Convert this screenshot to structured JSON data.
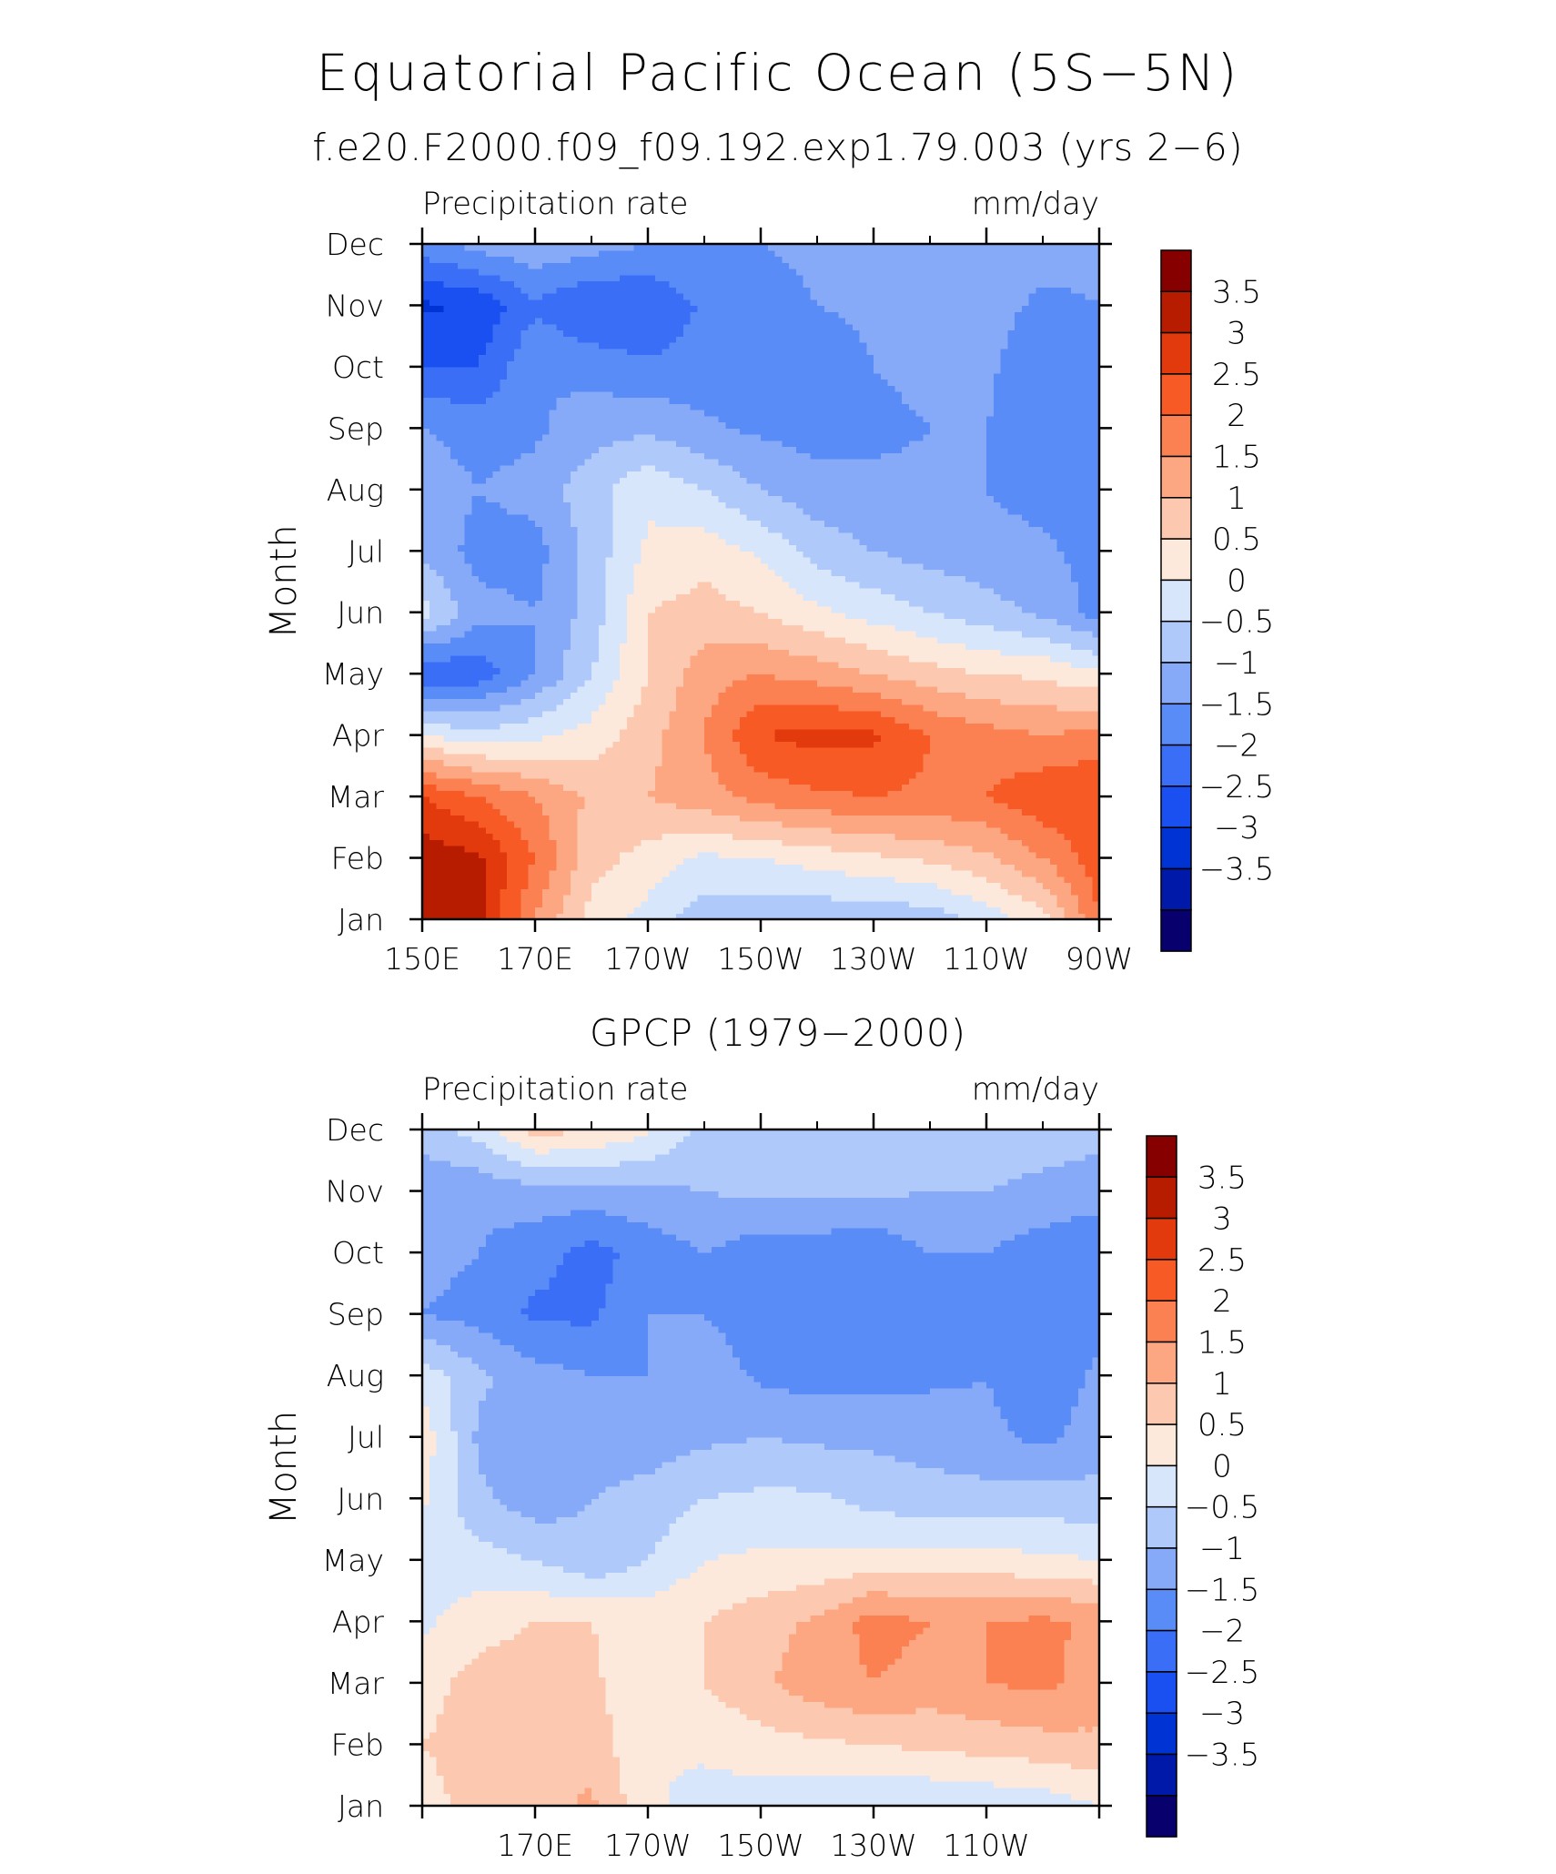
{
  "page": {
    "title": "Equatorial Pacific Ocean (5S−5N)",
    "subtitle": "f.e20.F2000.f09_f09.192.exp1.79.003 (yrs 2−6)"
  },
  "chart_data": [
    {
      "type": "heatmap",
      "title": "",
      "left_label": "Precipitation rate",
      "right_label": "mm/day",
      "ylabel": "Month",
      "xlabel": "",
      "x_ticks": [
        "150E",
        "170E",
        "170W",
        "150W",
        "130W",
        "110W",
        "90W"
      ],
      "x_tick_values": [
        150,
        170,
        190,
        210,
        230,
        250,
        270
      ],
      "xlim": [
        150,
        270
      ],
      "y_ticks": [
        "Jan",
        "Feb",
        "Mar",
        "Apr",
        "May",
        "Jun",
        "Jul",
        "Aug",
        "Sep",
        "Oct",
        "Nov",
        "Dec"
      ],
      "colorbar_labels": [
        "3.5",
        "3",
        "2.5",
        "2",
        "1.5",
        "1",
        "0.5",
        "0",
        "−0.5",
        "−1",
        "−1.5",
        "−2",
        "−2.5",
        "−3",
        "−3.5"
      ],
      "lon": [
        150,
        160,
        170,
        180,
        190,
        200,
        210,
        220,
        230,
        240,
        250,
        260,
        270
      ],
      "values": [
        [
          3.8,
          3.6,
          2.0,
          0.8,
          0.3,
          -0.3,
          -0.4,
          -0.4,
          -0.4,
          -0.3,
          0.2,
          0.8,
          2.5
        ],
        [
          3.8,
          3.6,
          2.5,
          1.2,
          0.8,
          0.4,
          0.5,
          0.7,
          0.9,
          1.1,
          1.4,
          2.0,
          2.8
        ],
        [
          3.0,
          2.5,
          2.0,
          1.4,
          1.5,
          1.8,
          2.2,
          2.4,
          2.5,
          2.4,
          2.5,
          2.9,
          3.0
        ],
        [
          0.5,
          0.2,
          0.4,
          0.7,
          1.3,
          2.0,
          3.0,
          3.2,
          3.1,
          2.5,
          2.2,
          2.0,
          2.2
        ],
        [
          -2.0,
          -1.8,
          -1.0,
          0.0,
          1.0,
          1.8,
          2.0,
          1.8,
          1.5,
          1.2,
          1.0,
          0.9,
          0.6
        ],
        [
          0.2,
          -0.8,
          -1.0,
          -0.3,
          1.0,
          1.2,
          1.0,
          0.6,
          0.3,
          0.0,
          -0.3,
          -0.6,
          -1.2
        ],
        [
          -0.6,
          -1.2,
          -1.2,
          -0.3,
          0.6,
          0.8,
          0.4,
          -0.2,
          -0.5,
          -0.7,
          -0.8,
          -0.9,
          -1.2
        ],
        [
          -0.7,
          -1.0,
          -0.8,
          -0.2,
          0.4,
          0.0,
          -0.5,
          -0.8,
          -0.9,
          -0.9,
          -1.0,
          -1.2,
          -1.2
        ],
        [
          -1.0,
          -1.2,
          -1.1,
          -0.7,
          -0.6,
          -0.9,
          -1.1,
          -1.2,
          -1.1,
          -1.0,
          -1.0,
          -1.3,
          -1.3
        ],
        [
          -2.0,
          -2.0,
          -1.0,
          -1.2,
          -1.4,
          -1.3,
          -1.4,
          -1.3,
          -1.0,
          -0.9,
          -0.9,
          -1.4,
          -1.3
        ],
        [
          -2.6,
          -2.4,
          -1.6,
          -2.0,
          -2.0,
          -1.4,
          -1.2,
          -1.0,
          -0.9,
          -0.8,
          -0.8,
          -1.1,
          -1.0
        ],
        [
          -1.2,
          -0.8,
          -0.6,
          -0.8,
          -1.0,
          -1.0,
          -1.0,
          -0.9,
          -0.8,
          -0.8,
          -0.8,
          -0.8,
          -0.9
        ]
      ]
    },
    {
      "type": "heatmap",
      "title": "GPCP (1979−2000)",
      "left_label": "Precipitation rate",
      "right_label": "mm/day",
      "ylabel": "Month",
      "xlabel": "",
      "x_ticks": [
        "170E",
        "170W",
        "150W",
        "130W",
        "110W"
      ],
      "x_tick_values": [
        170,
        190,
        210,
        230,
        250
      ],
      "xlim": [
        150,
        270
      ],
      "y_ticks": [
        "Jan",
        "Feb",
        "Mar",
        "Apr",
        "May",
        "Jun",
        "Jul",
        "Aug",
        "Sep",
        "Oct",
        "Nov",
        "Dec"
      ],
      "colorbar_labels": [
        "3.5",
        "3",
        "2.5",
        "2",
        "1.5",
        "1",
        "0.5",
        "0",
        "−0.5",
        "−1",
        "−1.5",
        "−2",
        "−2.5",
        "−3",
        "−3.5"
      ],
      "lon": [
        150,
        160,
        170,
        180,
        190,
        200,
        210,
        220,
        230,
        240,
        250,
        260,
        270
      ],
      "values": [
        [
          0.8,
          1.2,
          1.3,
          1.6,
          0.6,
          0.3,
          0.2,
          0.1,
          0.0,
          0.0,
          0.1,
          0.2,
          0.5
        ],
        [
          1.0,
          1.2,
          1.4,
          1.3,
          0.5,
          0.6,
          0.8,
          0.9,
          1.0,
          1.1,
          1.2,
          1.3,
          1.4
        ],
        [
          0.8,
          1.2,
          1.3,
          1.1,
          0.6,
          1.0,
          1.4,
          1.8,
          2.0,
          1.8,
          2.0,
          2.1,
          1.8
        ],
        [
          0.4,
          0.8,
          1.0,
          1.0,
          0.8,
          1.0,
          1.3,
          1.6,
          2.2,
          2.0,
          2.0,
          2.1,
          1.9
        ],
        [
          0.2,
          0.2,
          0.0,
          -0.4,
          0.0,
          0.5,
          0.6,
          0.6,
          0.7,
          0.7,
          0.7,
          0.6,
          0.5
        ],
        [
          0.6,
          -0.4,
          -0.8,
          -0.5,
          -0.3,
          0.0,
          0.1,
          0.1,
          -0.2,
          -0.3,
          -0.3,
          -0.3,
          -0.3
        ],
        [
          0.8,
          -0.6,
          -0.8,
          -0.8,
          -0.8,
          -0.6,
          -0.5,
          -0.6,
          -0.6,
          -0.7,
          -0.9,
          -1.1,
          -0.8
        ],
        [
          0.3,
          -0.4,
          -0.8,
          -1.0,
          -1.0,
          -0.7,
          -1.1,
          -1.2,
          -1.2,
          -1.1,
          -1.0,
          -1.3,
          -0.9
        ],
        [
          -1.0,
          -1.2,
          -1.6,
          -1.6,
          -1.0,
          -1.0,
          -1.3,
          -1.4,
          -1.4,
          -1.2,
          -1.0,
          -1.3,
          -1.2
        ],
        [
          -0.8,
          -1.0,
          -1.3,
          -1.7,
          -1.3,
          -1.0,
          -1.3,
          -1.3,
          -1.4,
          -1.0,
          -1.0,
          -1.3,
          -1.4
        ],
        [
          -0.9,
          -0.9,
          -0.7,
          -0.7,
          -0.6,
          -0.5,
          -0.4,
          -0.4,
          -0.4,
          -0.5,
          -0.5,
          -0.6,
          -0.8
        ],
        [
          -0.2,
          0.2,
          1.2,
          1.0,
          0.6,
          -0.2,
          -0.3,
          -0.3,
          -0.3,
          -0.3,
          -0.3,
          -0.3,
          -0.3
        ]
      ]
    }
  ],
  "palette": [
    "#08006c",
    "#0019a8",
    "#0033d4",
    "#1a4ff2",
    "#3b6ef7",
    "#5a8cf7",
    "#86aaf8",
    "#b0c9fb",
    "#d8e6fc",
    "#fde9db",
    "#fcc9b0",
    "#fca782",
    "#fb8152",
    "#f75a25",
    "#e23a0c",
    "#b81c00",
    "#870000"
  ]
}
